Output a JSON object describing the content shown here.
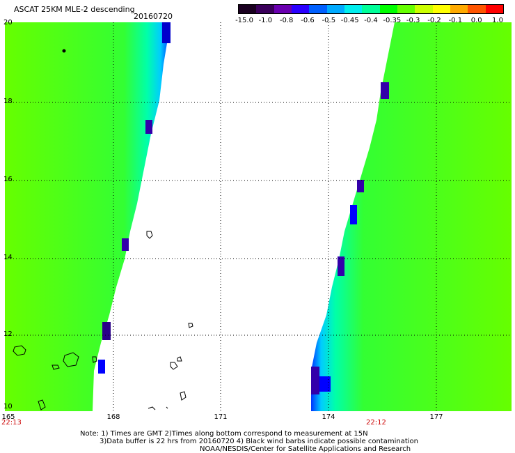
{
  "header": {
    "title": "ASCAT 25KM MLE-2 descending",
    "date": "20160720"
  },
  "colorscale": {
    "labels": [
      "-15.0",
      "-1.0",
      "-0.8",
      "-0.6",
      "-0.5",
      "-0.45",
      "-0.4",
      "-0.35",
      "-0.3",
      "-0.2",
      "-0.1",
      "0.0",
      "1.0"
    ],
    "colors": [
      "#1a0020",
      "#3a005a",
      "#6a00b0",
      "#2a00ff",
      "#0060ff",
      "#00aaff",
      "#00eeee",
      "#00ff99",
      "#00ff00",
      "#66ff00",
      "#ccff00",
      "#ffff00",
      "#ffaa00",
      "#ff5500",
      "#ff0000"
    ]
  },
  "axes": {
    "lat_labels": [
      "20",
      "18",
      "16",
      "14",
      "12",
      "10"
    ],
    "lon_labels": [
      "165",
      "168",
      "171",
      "174",
      "177"
    ],
    "time_labels": [
      "22:13",
      "22:12"
    ]
  },
  "notes": {
    "line1": "Note: 1) Times are GMT 2)Times along bottom correspond to measurement at 15N",
    "line2": "3)Data buffer is 22 hrs from 20160720 4) Black wind barbs indicate possible contamination",
    "line3": "NOAA/NESDIS/Center for Satellite Applications and Research"
  }
}
